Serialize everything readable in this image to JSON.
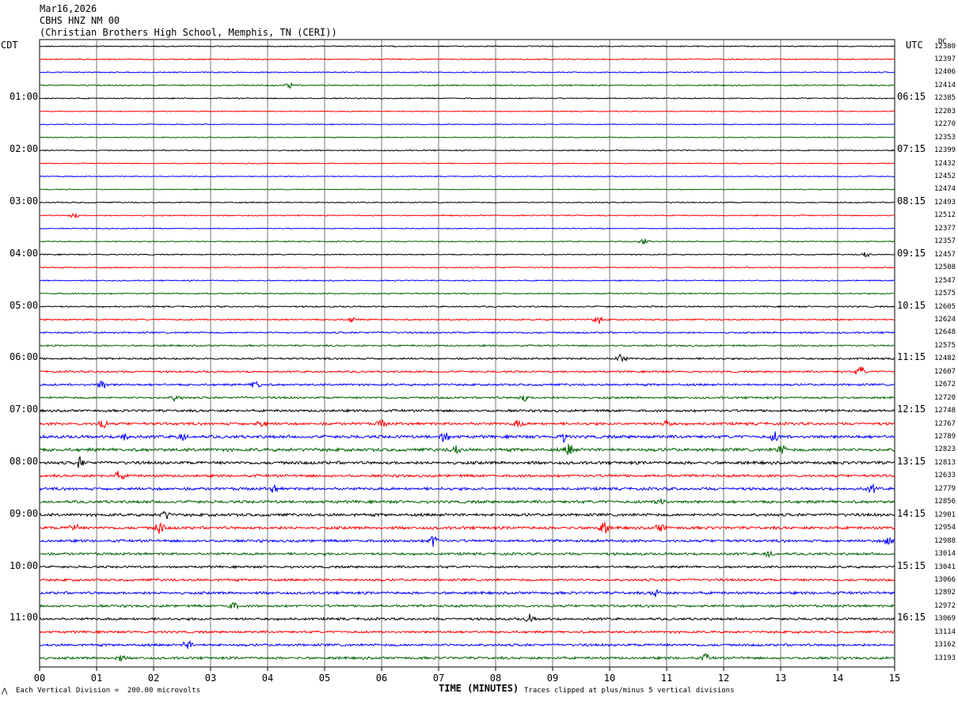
{
  "header": {
    "date": "Mar16,2026",
    "station": "CBHS HNZ NM 00",
    "location": "(Christian Brothers High School, Memphis, TN (CERI))"
  },
  "left_tz": "CDT",
  "right_tz": "UTC",
  "dc_label": "DC",
  "xlabel": "TIME (MINUTES)",
  "footer": {
    "scale_note": "Each Vertical Division =  200.00 microvolts",
    "clip_note": "Traces clipped at plus/minus 5 vertical divisions"
  },
  "chart_data": {
    "type": "line",
    "description_of_kind": "helicorder",
    "x_ticks": [
      "00",
      "01",
      "02",
      "03",
      "04",
      "05",
      "06",
      "07",
      "08",
      "09",
      "10",
      "11",
      "12",
      "13",
      "14",
      "15"
    ],
    "xlim": [
      0,
      15
    ],
    "trace_colors": [
      "#000000",
      "#ff0000",
      "#0000ff",
      "#006400"
    ],
    "cdt_labels": [
      "01:00",
      "02:00",
      "03:00",
      "04:00",
      "05:00",
      "06:00",
      "07:00",
      "08:00",
      "09:00",
      "10:00",
      "11:00"
    ],
    "utc_labels": [
      "06:15",
      "07:15",
      "08:15",
      "09:15",
      "10:15",
      "11:15",
      "12:15",
      "13:15",
      "14:15",
      "15:15",
      "16:15"
    ],
    "dc_values": [
      "12380",
      "12397",
      "12406",
      "12414",
      "12385",
      "12203",
      "12270",
      "12353",
      "12399",
      "12432",
      "12452",
      "12474",
      "12493",
      "12512",
      "12377",
      "12357",
      "12457",
      "12508",
      "12547",
      "12575",
      "12605",
      "12624",
      "12648",
      "12575",
      "12482",
      "12607",
      "12672",
      "12720",
      "12748",
      "12767",
      "12789",
      "12823",
      "12813",
      "12633",
      "12779",
      "12856",
      "12901",
      "12954",
      "12988",
      "13014",
      "13041",
      "13066",
      "12892",
      "12972",
      "13069",
      "13114",
      "13162",
      "13193"
    ],
    "noise_level": [
      0.6,
      0.6,
      0.6,
      0.7,
      0.6,
      0.5,
      0.5,
      0.5,
      0.6,
      0.5,
      0.5,
      0.5,
      0.6,
      0.6,
      0.5,
      0.6,
      0.6,
      0.6,
      0.6,
      0.7,
      0.8,
      0.8,
      0.9,
      0.9,
      1.0,
      1.0,
      1.1,
      1.1,
      1.3,
      1.4,
      1.6,
      1.7,
      1.6,
      1.4,
      1.5,
      1.5,
      1.5,
      1.5,
      1.4,
      1.3,
      1.2,
      1.3,
      1.4,
      1.3,
      1.3,
      1.2,
      1.3,
      1.3
    ],
    "events": [
      {
        "trace": 3,
        "minute": 4.4,
        "amp": 2.0
      },
      {
        "trace": 13,
        "minute": 0.6,
        "amp": 2.0
      },
      {
        "trace": 15,
        "minute": 10.6,
        "amp": 2.5
      },
      {
        "trace": 16,
        "minute": 14.5,
        "amp": 2.0
      },
      {
        "trace": 21,
        "minute": 5.5,
        "amp": 2.0
      },
      {
        "trace": 21,
        "minute": 9.8,
        "amp": 2.5
      },
      {
        "trace": 24,
        "minute": 10.2,
        "amp": 4.0
      },
      {
        "trace": 25,
        "minute": 14.4,
        "amp": 3.5
      },
      {
        "trace": 26,
        "minute": 1.1,
        "amp": 3.0
      },
      {
        "trace": 26,
        "minute": 3.8,
        "amp": 3.5
      },
      {
        "trace": 27,
        "minute": 2.4,
        "amp": 2.5
      },
      {
        "trace": 27,
        "minute": 8.5,
        "amp": 2.5
      },
      {
        "trace": 29,
        "minute": 1.1,
        "amp": 3.0
      },
      {
        "trace": 29,
        "minute": 3.9,
        "amp": 3.0
      },
      {
        "trace": 29,
        "minute": 6.0,
        "amp": 2.5
      },
      {
        "trace": 29,
        "minute": 8.4,
        "amp": 2.5
      },
      {
        "trace": 29,
        "minute": 11.0,
        "amp": 2.5
      },
      {
        "trace": 30,
        "minute": 1.5,
        "amp": 3.0
      },
      {
        "trace": 30,
        "minute": 2.5,
        "amp": 3.0
      },
      {
        "trace": 30,
        "minute": 7.1,
        "amp": 3.5
      },
      {
        "trace": 30,
        "minute": 9.2,
        "amp": 3.0
      },
      {
        "trace": 30,
        "minute": 12.9,
        "amp": 3.0
      },
      {
        "trace": 31,
        "minute": 7.3,
        "amp": 3.0
      },
      {
        "trace": 31,
        "minute": 9.3,
        "amp": 4.5
      },
      {
        "trace": 31,
        "minute": 13.0,
        "amp": 3.5
      },
      {
        "trace": 32,
        "minute": 0.7,
        "amp": 3.5
      },
      {
        "trace": 33,
        "minute": 1.4,
        "amp": 3.0
      },
      {
        "trace": 34,
        "minute": 4.1,
        "amp": 2.5
      },
      {
        "trace": 34,
        "minute": 14.6,
        "amp": 2.5
      },
      {
        "trace": 35,
        "minute": 10.9,
        "amp": 4.0
      },
      {
        "trace": 36,
        "minute": 2.2,
        "amp": 3.0
      },
      {
        "trace": 37,
        "minute": 0.6,
        "amp": 3.0
      },
      {
        "trace": 37,
        "minute": 2.1,
        "amp": 4.0
      },
      {
        "trace": 37,
        "minute": 9.9,
        "amp": 4.5
      },
      {
        "trace": 37,
        "minute": 10.9,
        "amp": 3.0
      },
      {
        "trace": 38,
        "minute": 6.9,
        "amp": 4.5
      },
      {
        "trace": 38,
        "minute": 14.9,
        "amp": 4.0
      },
      {
        "trace": 39,
        "minute": 12.8,
        "amp": 2.5
      },
      {
        "trace": 42,
        "minute": 10.8,
        "amp": 2.5
      },
      {
        "trace": 43,
        "minute": 3.4,
        "amp": 2.5
      },
      {
        "trace": 44,
        "minute": 8.6,
        "amp": 2.5
      },
      {
        "trace": 46,
        "minute": 2.6,
        "amp": 3.0
      },
      {
        "trace": 47,
        "minute": 11.7,
        "amp": 2.5
      },
      {
        "trace": 47,
        "minute": 1.4,
        "amp": 2.0
      }
    ]
  }
}
